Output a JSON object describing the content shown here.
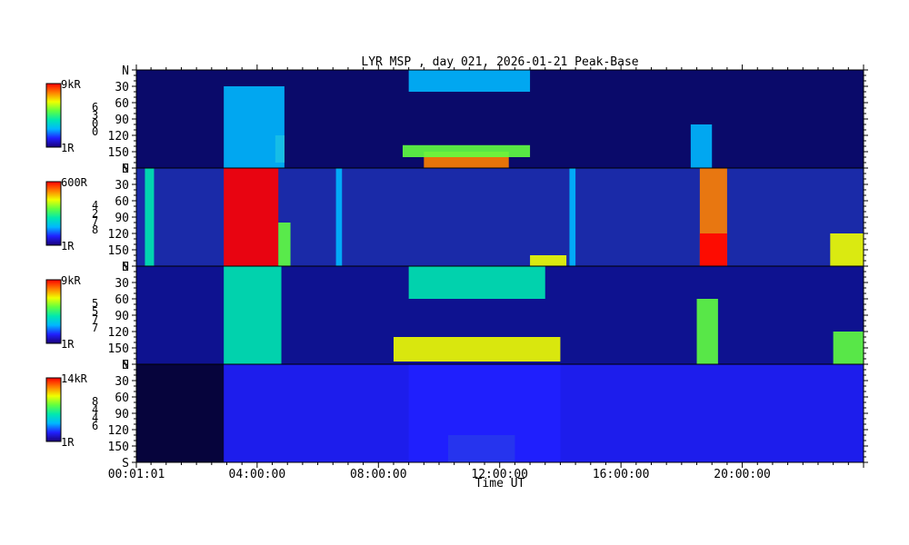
{
  "chart_data": {
    "type": "heatmap",
    "title": "LYR MSP , day 021, 2026-01-21 Peak-Base",
    "xlabel": "Time UT",
    "x_tick_labels": [
      "00:01:01",
      "04:00:00",
      "08:00:00",
      "12:00:00",
      "16:00:00",
      "20:00:00"
    ],
    "x_tick_hours": [
      0.017,
      4,
      8,
      12,
      16,
      20
    ],
    "xlim_hours": [
      0.017,
      24
    ],
    "y_tick_labels": [
      "N",
      "30",
      "60",
      "90",
      "120",
      "150",
      "S"
    ],
    "y_tick_values": [
      0,
      30,
      60,
      90,
      120,
      150,
      180
    ],
    "ylim": [
      0,
      180
    ],
    "colormap": [
      "#1a0078",
      "#2020ff",
      "#00b8ff",
      "#00e8b0",
      "#60ff40",
      "#f0ff00",
      "#ff8000",
      "#ff0000"
    ],
    "panels": [
      {
        "colorbar_max": "9kR",
        "colorbar_min": "1R",
        "colorbar_digits": [
          "6",
          "3",
          "0",
          "0"
        ],
        "background": "#0a0a6a",
        "features": [
          {
            "t0": 9.5,
            "t1": 12.3,
            "el0": 150,
            "el1": 180,
            "intensity": 0.85
          },
          {
            "t0": 8.8,
            "t1": 13.0,
            "el0": 138,
            "el1": 160,
            "intensity": 0.5
          },
          {
            "t0": 9.0,
            "t1": 13.0,
            "el0": 0,
            "el1": 40,
            "intensity": 0.35
          },
          {
            "t0": 4.6,
            "t1": 4.9,
            "el0": 120,
            "el1": 170,
            "intensity": 0.65
          },
          {
            "t0": 2.9,
            "t1": 4.9,
            "el0": 30,
            "el1": 180,
            "intensity": 0.25
          },
          {
            "t0": 18.3,
            "t1": 19.0,
            "el0": 100,
            "el1": 180,
            "intensity": 0.3
          }
        ]
      },
      {
        "colorbar_max": "600R",
        "colorbar_min": "1R",
        "colorbar_digits": [
          "4",
          "2",
          "7",
          "8"
        ],
        "background": "#1a2aa8",
        "features": [
          {
            "t0": 2.9,
            "t1": 4.7,
            "el0": 0,
            "el1": 180,
            "intensity": 1.0
          },
          {
            "t0": 4.7,
            "t1": 5.1,
            "el0": 100,
            "el1": 180,
            "intensity": 0.6
          },
          {
            "t0": 18.6,
            "t1": 19.5,
            "el0": 0,
            "el1": 180,
            "intensity": 0.85
          },
          {
            "t0": 18.6,
            "t1": 19.5,
            "el0": 120,
            "el1": 180,
            "intensity": 1.0
          },
          {
            "t0": 22.9,
            "t1": 24.0,
            "el0": 120,
            "el1": 180,
            "intensity": 0.75
          },
          {
            "t0": 13.0,
            "t1": 14.2,
            "el0": 160,
            "el1": 180,
            "intensity": 0.7
          },
          {
            "t0": 0.3,
            "t1": 0.6,
            "el0": 0,
            "el1": 180,
            "intensity": 0.4
          },
          {
            "t0": 6.6,
            "t1": 6.8,
            "el0": 0,
            "el1": 180,
            "intensity": 0.35
          },
          {
            "t0": 14.3,
            "t1": 14.5,
            "el0": 0,
            "el1": 180,
            "intensity": 0.35
          }
        ]
      },
      {
        "colorbar_max": "9kR",
        "colorbar_min": "1R",
        "colorbar_digits": [
          "5",
          "5",
          "7",
          "7"
        ],
        "background": "#0e1290",
        "features": [
          {
            "t0": 8.5,
            "t1": 14.0,
            "el0": 130,
            "el1": 175,
            "intensity": 0.75
          },
          {
            "t0": 9.0,
            "t1": 13.5,
            "el0": 0,
            "el1": 60,
            "intensity": 0.4
          },
          {
            "t0": 2.9,
            "t1": 4.8,
            "el0": 0,
            "el1": 180,
            "intensity": 0.45
          },
          {
            "t0": 18.5,
            "t1": 19.2,
            "el0": 60,
            "el1": 180,
            "intensity": 0.55
          },
          {
            "t0": 23.0,
            "t1": 24.0,
            "el0": 120,
            "el1": 180,
            "intensity": 0.5
          }
        ]
      },
      {
        "colorbar_max": "14kR",
        "colorbar_min": "1R",
        "colorbar_digits": [
          "8",
          "4",
          "4",
          "6"
        ],
        "background": "#06043c",
        "features": [
          {
            "t0": 9.0,
            "t1": 14.0,
            "el0": 0,
            "el1": 180,
            "intensity": 0.2
          },
          {
            "t0": 10.3,
            "t1": 12.5,
            "el0": 130,
            "el1": 180,
            "intensity": 0.5
          },
          {
            "t0": 2.9,
            "t1": 24.0,
            "el0": 0,
            "el1": 180,
            "intensity": 0.08
          }
        ]
      }
    ]
  }
}
